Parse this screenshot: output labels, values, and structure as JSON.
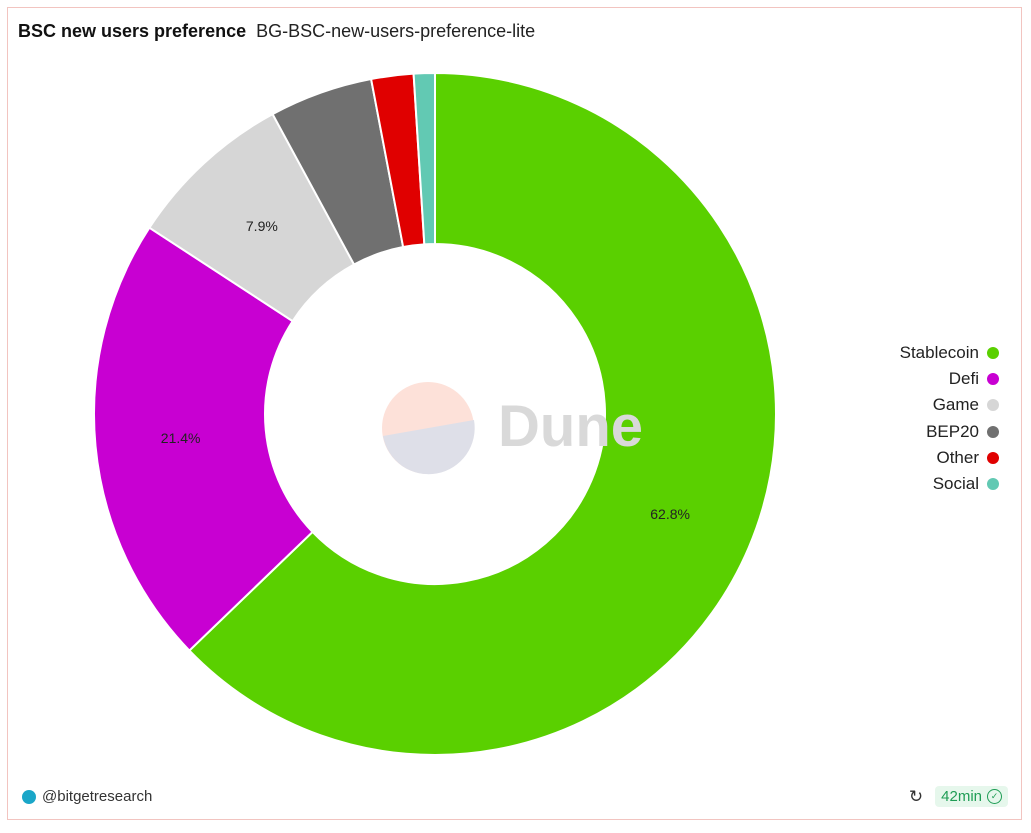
{
  "header": {
    "title": "BSC new users preference",
    "subtitle": "BG-BSC-new-users-preference-lite"
  },
  "watermark": {
    "text": "Dune"
  },
  "chart_data": {
    "type": "pie",
    "donut": true,
    "categories": [
      "Stablecoin",
      "Defi",
      "Game",
      "BEP20",
      "Other",
      "Social"
    ],
    "values": [
      62.8,
      21.4,
      7.9,
      4.9,
      2.0,
      1.0
    ],
    "colors": [
      "#5ad000",
      "#c800d2",
      "#d6d6d6",
      "#707070",
      "#e00000",
      "#62c9b3"
    ],
    "data_labels": [
      "62.8%",
      "21.4%",
      "7.9%",
      "",
      "",
      ""
    ],
    "legend": "right"
  },
  "footer": {
    "author": "@bitgetresearch",
    "refresh_icon": "refresh-icon",
    "freshness": "42min",
    "status_icon": "check-circle-icon"
  }
}
